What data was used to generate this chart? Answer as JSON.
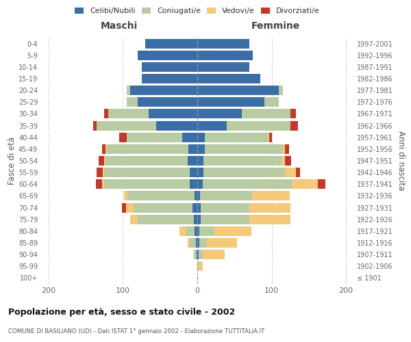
{
  "age_groups": [
    "100+",
    "95-99",
    "90-94",
    "85-89",
    "80-84",
    "75-79",
    "70-74",
    "65-69",
    "60-64",
    "55-59",
    "50-54",
    "45-49",
    "40-44",
    "35-39",
    "30-34",
    "25-29",
    "20-24",
    "15-19",
    "10-14",
    "5-9",
    "0-4"
  ],
  "birth_years": [
    "≤ 1901",
    "1902-1906",
    "1907-1911",
    "1912-1916",
    "1917-1921",
    "1922-1926",
    "1927-1931",
    "1932-1936",
    "1937-1941",
    "1942-1946",
    "1947-1951",
    "1952-1956",
    "1957-1961",
    "1962-1966",
    "1967-1971",
    "1972-1976",
    "1977-1981",
    "1982-1986",
    "1987-1991",
    "1992-1996",
    "1997-2001"
  ],
  "colors": {
    "celibi": "#3a6ea5",
    "coniugati": "#b8cba3",
    "vedovi": "#f5c97a",
    "divorziati": "#c0392b"
  },
  "maschi": {
    "celibi": [
      0,
      0,
      1,
      2,
      4,
      5,
      6,
      4,
      10,
      10,
      13,
      12,
      20,
      55,
      65,
      80,
      90,
      75,
      75,
      80,
      70
    ],
    "coniugati": [
      0,
      0,
      4,
      8,
      12,
      75,
      80,
      90,
      115,
      115,
      110,
      110,
      75,
      80,
      55,
      15,
      5,
      0,
      0,
      0,
      0
    ],
    "vedovi": [
      0,
      0,
      0,
      3,
      8,
      10,
      10,
      5,
      3,
      2,
      2,
      1,
      0,
      0,
      0,
      0,
      0,
      0,
      0,
      0,
      0
    ],
    "divorziati": [
      0,
      0,
      0,
      0,
      0,
      0,
      5,
      0,
      8,
      8,
      8,
      5,
      10,
      5,
      5,
      0,
      0,
      0,
      0,
      0,
      0
    ]
  },
  "femmine": {
    "celibi": [
      0,
      0,
      2,
      3,
      3,
      5,
      5,
      4,
      7,
      8,
      8,
      10,
      10,
      40,
      60,
      90,
      110,
      85,
      70,
      75,
      70
    ],
    "coniugati": [
      0,
      2,
      5,
      10,
      20,
      65,
      65,
      70,
      120,
      110,
      105,
      105,
      85,
      85,
      65,
      20,
      5,
      0,
      0,
      0,
      0
    ],
    "vedovi": [
      0,
      5,
      30,
      40,
      50,
      55,
      55,
      50,
      35,
      15,
      5,
      3,
      2,
      0,
      0,
      0,
      0,
      0,
      0,
      0,
      0
    ],
    "divorziati": [
      0,
      0,
      0,
      0,
      0,
      0,
      0,
      0,
      10,
      5,
      8,
      5,
      3,
      10,
      8,
      0,
      0,
      0,
      0,
      0,
      0
    ]
  },
  "title": "Popolazione per età, sesso e stato civile - 2002",
  "subtitle": "COMUNE DI BASILIANO (UD) - Dati ISTAT 1° gennaio 2002 - Elaborazione TUTTITALIA.IT",
  "xlabel_left": "Maschi",
  "xlabel_right": "Femmine",
  "ylabel_left": "Fasce di età",
  "ylabel_right": "Anni di nascita",
  "legend_labels": [
    "Celibi/Nubili",
    "Coniugati/e",
    "Vedovi/e",
    "Divorziati/e"
  ],
  "xlim": 210,
  "bg_color": "#ffffff",
  "grid_color": "#cccccc"
}
